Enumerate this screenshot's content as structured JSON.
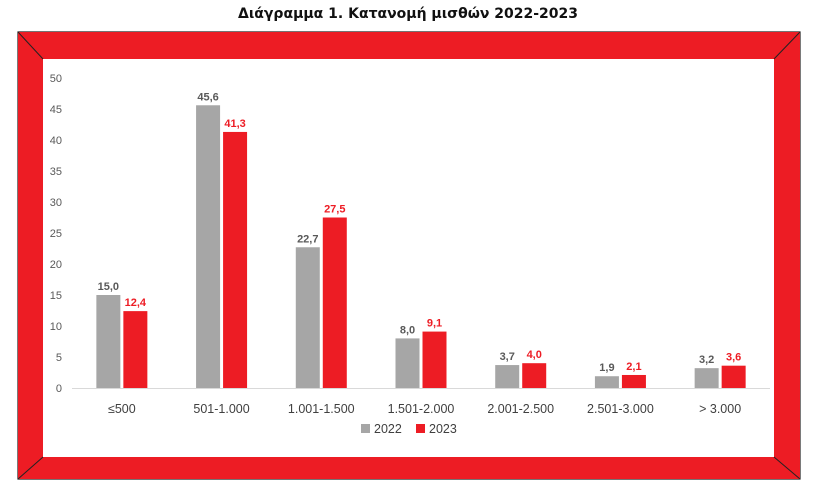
{
  "chart_data": {
    "type": "bar",
    "title": "Διάγραμμα 1. Κατανομή μισθών 2022-2023",
    "categories": [
      "≤500",
      "501-1.000",
      "1.001-1.500",
      "1.501-2.000",
      "2.001-2.500",
      "2.501-3.000",
      "> 3.000"
    ],
    "series": [
      {
        "name": "2022",
        "color": "#a6a6a6",
        "label_color": "#595959",
        "values": [
          15.0,
          45.6,
          22.7,
          8.0,
          3.7,
          1.9,
          3.2
        ],
        "labels": [
          "15,0",
          "45,6",
          "22,7",
          "8,0",
          "3,7",
          "1,9",
          "3,2"
        ]
      },
      {
        "name": "2023",
        "color": "#ed1c24",
        "label_color": "#ed1c24",
        "values": [
          12.4,
          41.3,
          27.5,
          9.1,
          4.0,
          2.1,
          3.6
        ],
        "labels": [
          "12,4",
          "41,3",
          "27,5",
          "9,1",
          "4,0",
          "2,1",
          "3,6"
        ]
      }
    ],
    "ylim": [
      0,
      50
    ],
    "yticks": [
      0,
      5,
      10,
      15,
      20,
      25,
      30,
      35,
      40,
      45,
      50
    ],
    "grid": false,
    "legend_position": "bottom",
    "frame_color": "#ed1c24"
  }
}
